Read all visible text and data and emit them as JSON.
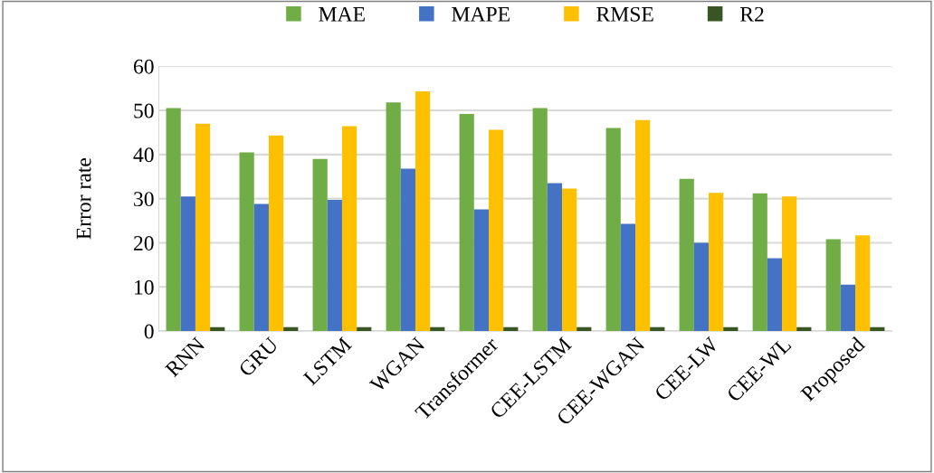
{
  "chart_data": {
    "type": "bar",
    "ylabel": "Error rate",
    "categories": [
      "RNN",
      "GRU",
      "LSTM",
      "WGAN",
      "Transformer",
      "CEE-LSTM",
      "CEE-WGAN",
      "CEE-LW",
      "CEE-WL",
      "Proposed"
    ],
    "series": [
      {
        "name": "MAE",
        "color": "#70ad47",
        "values": [
          50.5,
          40.5,
          39,
          51.8,
          49.2,
          50.5,
          46,
          34.5,
          31.2,
          20.8
        ]
      },
      {
        "name": "MAPE",
        "color": "#4472c4",
        "values": [
          30.5,
          28.8,
          29.7,
          36.8,
          27.6,
          33.5,
          24.3,
          20,
          16.5,
          10.5
        ]
      },
      {
        "name": "RMSE",
        "color": "#ffc000",
        "values": [
          47,
          44.3,
          46.4,
          54.3,
          45.6,
          32.3,
          47.8,
          31.3,
          30.5,
          21.7
        ]
      },
      {
        "name": "R2",
        "color": "#375623",
        "values": [
          0.9,
          0.9,
          0.9,
          0.9,
          0.9,
          0.9,
          0.9,
          0.9,
          0.9,
          0.9
        ]
      }
    ],
    "ylim": [
      0,
      60
    ],
    "yticks": [
      0,
      10,
      20,
      30,
      40,
      50,
      60
    ],
    "grid": "y",
    "legend": "top"
  }
}
